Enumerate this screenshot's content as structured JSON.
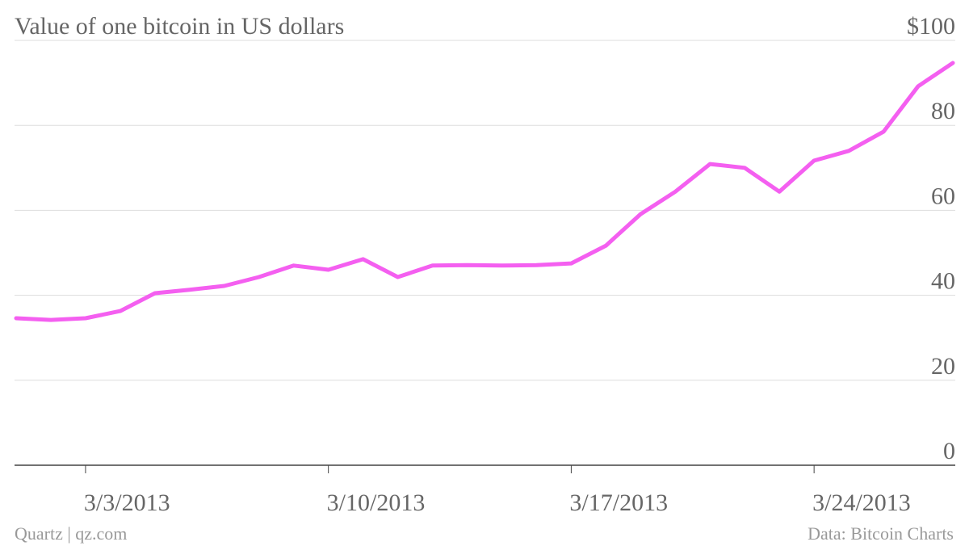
{
  "chart_data": {
    "type": "line",
    "title": "Value of one bitcoin in US dollars",
    "x": [
      "3/1/2013",
      "3/2/2013",
      "3/3/2013",
      "3/4/2013",
      "3/5/2013",
      "3/6/2013",
      "3/7/2013",
      "3/8/2013",
      "3/9/2013",
      "3/10/2013",
      "3/11/2013",
      "3/12/2013",
      "3/13/2013",
      "3/14/2013",
      "3/15/2013",
      "3/16/2013",
      "3/17/2013",
      "3/18/2013",
      "3/19/2013",
      "3/20/2013",
      "3/21/2013",
      "3/22/2013",
      "3/23/2013",
      "3/24/2013",
      "3/25/2013",
      "3/26/2013",
      "3/27/2013",
      "3/28/2013"
    ],
    "values": [
      34.6,
      34.2,
      34.6,
      36.3,
      40.5,
      41.3,
      42.2,
      44.3,
      47.0,
      46.0,
      48.5,
      44.3,
      47.0,
      47.1,
      47.0,
      47.1,
      47.5,
      51.7,
      59.1,
      64.4,
      70.9,
      70.0,
      64.4,
      71.7,
      74.0,
      78.5,
      89.2,
      94.7
    ],
    "color": "#f45ff0",
    "xticks": [
      "3/3/2013",
      "3/10/2013",
      "3/17/2013",
      "3/24/2013"
    ],
    "ylim": [
      0,
      100
    ],
    "yticks": [
      0,
      20,
      40,
      60,
      80,
      {
        "value": 100,
        "label": "$100"
      }
    ],
    "grid": true,
    "source_left": "Quartz | qz.com",
    "source_right": "Data: Bitcoin Charts"
  }
}
